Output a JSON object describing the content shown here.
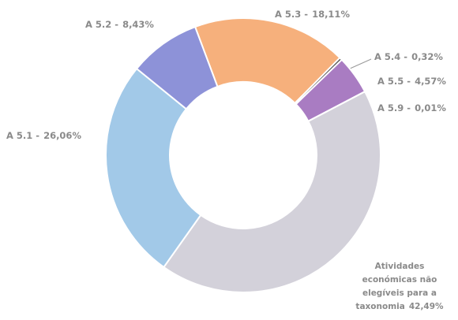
{
  "chart_data": {
    "type": "donut",
    "categories": [
      "A 5.3 -",
      "A 5.4 -",
      "A 5.5 -",
      "A 5.9 -",
      "Atividades económicas não elegíveis para a taxonomia",
      "A 5.1 -",
      "A 5.2 -"
    ],
    "values": [
      18.11,
      0.32,
      4.57,
      0.01,
      42.49,
      26.06,
      8.43
    ],
    "value_labels": [
      "18,11%",
      "0,32%",
      "4,57%",
      "0,01%",
      "42,49%",
      "26,06%",
      "8,43%"
    ],
    "colors": [
      "#f6b07c",
      "#505050",
      "#a97cc2",
      "#8a6aa0",
      "#d3d1da",
      "#a2c9e8",
      "#8d92d8"
    ]
  }
}
